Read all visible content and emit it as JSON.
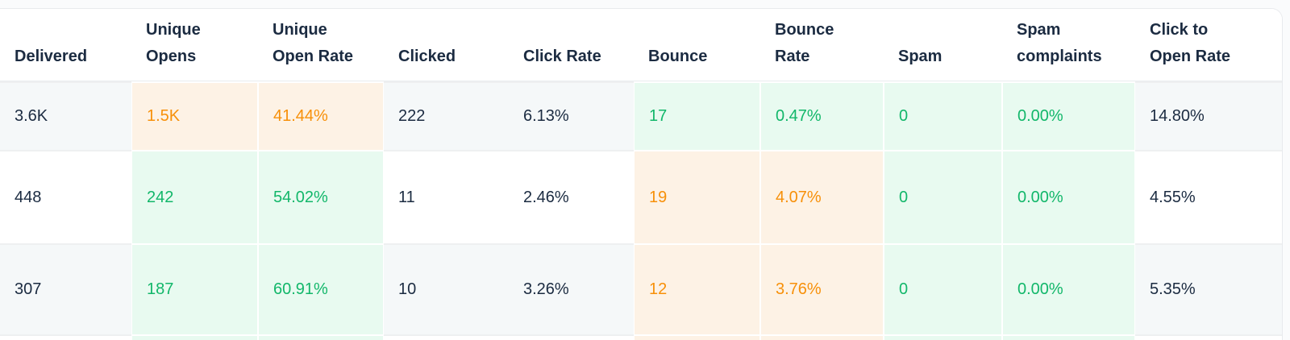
{
  "table": {
    "name": "email-campaign-metrics-table",
    "columns": [
      {
        "key": "delivered",
        "line1": "Delivered",
        "line2": ""
      },
      {
        "key": "unique-opens",
        "line1": "Unique",
        "line2": "Opens"
      },
      {
        "key": "unique-open-rate",
        "line1": "Unique",
        "line2": "Open Rate"
      },
      {
        "key": "clicked",
        "line1": "Clicked",
        "line2": ""
      },
      {
        "key": "click-rate",
        "line1": "Click Rate",
        "line2": ""
      },
      {
        "key": "bounce",
        "line1": "Bounce",
        "line2": ""
      },
      {
        "key": "bounce-rate",
        "line1": "Bounce",
        "line2": "Rate"
      },
      {
        "key": "spam",
        "line1": "Spam",
        "line2": ""
      },
      {
        "key": "spam-complaints",
        "line1": "Spam",
        "line2": "complaints"
      },
      {
        "key": "click-to-open-rate",
        "line1": "Click to",
        "line2": "Open Rate"
      }
    ],
    "rows": [
      {
        "cells": [
          {
            "text": "3.6K",
            "tint": "none"
          },
          {
            "text": "1.5K",
            "tint": "orange"
          },
          {
            "text": "41.44%",
            "tint": "orange"
          },
          {
            "text": "222",
            "tint": "none"
          },
          {
            "text": "6.13%",
            "tint": "none"
          },
          {
            "text": "17",
            "tint": "green"
          },
          {
            "text": "0.47%",
            "tint": "green"
          },
          {
            "text": "0",
            "tint": "green"
          },
          {
            "text": "0.00%",
            "tint": "green"
          },
          {
            "text": "14.80%",
            "tint": "none"
          }
        ]
      },
      {
        "cells": [
          {
            "text": "448",
            "tint": "none"
          },
          {
            "text": "242",
            "tint": "green"
          },
          {
            "text": "54.02%",
            "tint": "green"
          },
          {
            "text": "11",
            "tint": "none"
          },
          {
            "text": "2.46%",
            "tint": "none"
          },
          {
            "text": "19",
            "tint": "orange"
          },
          {
            "text": "4.07%",
            "tint": "orange"
          },
          {
            "text": "0",
            "tint": "green"
          },
          {
            "text": "0.00%",
            "tint": "green"
          },
          {
            "text": "4.55%",
            "tint": "none"
          }
        ]
      },
      {
        "cells": [
          {
            "text": "307",
            "tint": "none"
          },
          {
            "text": "187",
            "tint": "green"
          },
          {
            "text": "60.91%",
            "tint": "green"
          },
          {
            "text": "10",
            "tint": "none"
          },
          {
            "text": "3.26%",
            "tint": "none"
          },
          {
            "text": "12",
            "tint": "orange"
          },
          {
            "text": "3.76%",
            "tint": "orange"
          },
          {
            "text": "0",
            "tint": "green"
          },
          {
            "text": "0.00%",
            "tint": "green"
          },
          {
            "text": "5.35%",
            "tint": "none"
          }
        ]
      },
      {
        "cells": [
          {
            "text": "",
            "tint": "none"
          },
          {
            "text": "",
            "tint": "green"
          },
          {
            "text": "",
            "tint": "green"
          },
          {
            "text": "",
            "tint": "none"
          },
          {
            "text": "",
            "tint": "none"
          },
          {
            "text": "",
            "tint": "orange"
          },
          {
            "text": "",
            "tint": "orange"
          },
          {
            "text": "",
            "tint": "green"
          },
          {
            "text": "",
            "tint": "green"
          },
          {
            "text": "",
            "tint": "none"
          }
        ]
      }
    ]
  },
  "colors": {
    "header_text": "#1b2b41",
    "body_text": "#1b2b41",
    "positive_text": "#12b76a",
    "positive_bg": "#e8faf0",
    "warning_text": "#f79009",
    "warning_bg": "#fdf2e5",
    "stripe_row_bg": "#f5f8f9",
    "white_row_bg": "#ffffff",
    "divider": "#eef0f1",
    "card_border": "#e8eaed",
    "page_bg": "#fafbfc"
  }
}
